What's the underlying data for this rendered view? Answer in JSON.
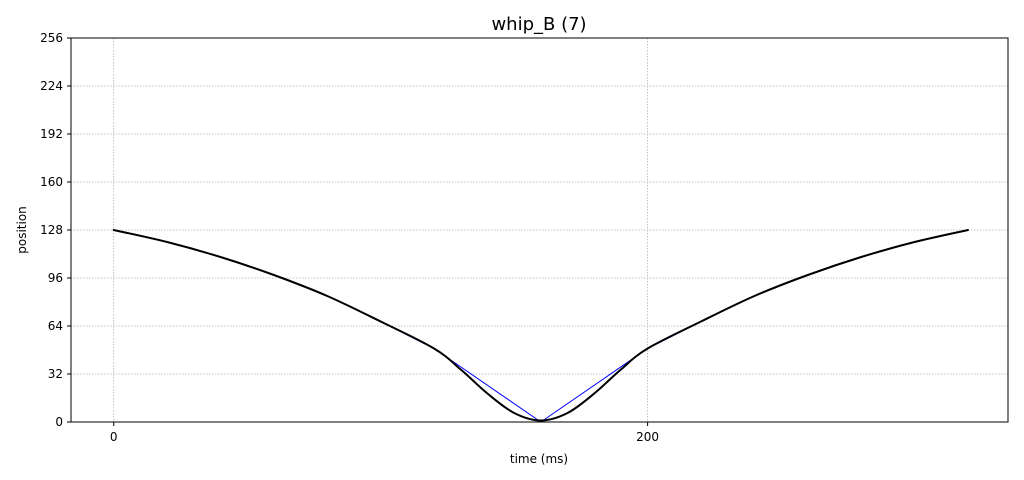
{
  "chart_data": {
    "type": "line",
    "title": "whip_B (7)",
    "xlabel": "time (ms)",
    "ylabel": "position",
    "xlim": [
      -16,
      335
    ],
    "ylim": [
      0,
      256
    ],
    "xticks": [
      0,
      200
    ],
    "yticks": [
      0,
      32,
      64,
      96,
      128,
      160,
      192,
      224,
      256
    ],
    "grid": true,
    "series": [
      {
        "color": "#0000ff",
        "width": 1,
        "x": [
          0,
          20,
          40,
          60,
          80,
          100,
          120,
          160,
          200,
          220,
          240,
          260,
          280,
          300,
          320
        ],
        "y": [
          128,
          120,
          110,
          98,
          84,
          67,
          49,
          0,
          49,
          67,
          84,
          98,
          110,
          120,
          128
        ]
      },
      {
        "color": "#000000",
        "width": 2,
        "x": [
          0,
          20,
          40,
          60,
          80,
          100,
          120,
          130,
          140,
          150,
          160,
          170,
          180,
          190,
          200,
          220,
          240,
          260,
          280,
          300,
          320
        ],
        "y": [
          128,
          120,
          110,
          98,
          84,
          67,
          49,
          35,
          19,
          6,
          1,
          6,
          19,
          35,
          49,
          67,
          84,
          98,
          110,
          120,
          128
        ]
      }
    ]
  }
}
